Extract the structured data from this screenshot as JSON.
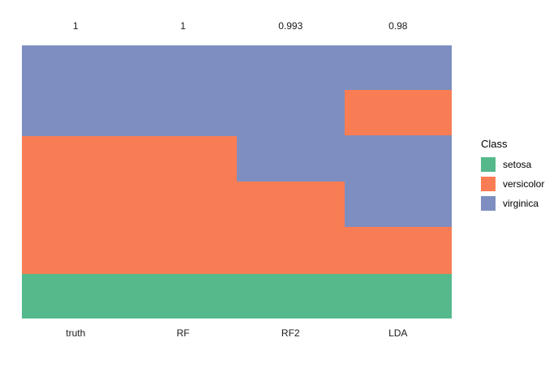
{
  "chart_data": {
    "type": "heatmap",
    "title": "",
    "description": "Stacked class-band chart comparing true iris classes with classifier predictions",
    "columns": [
      "truth",
      "RF",
      "RF2",
      "LDA"
    ],
    "column_top_labels": [
      "1",
      "1",
      "0.993",
      "0.98"
    ],
    "classes": [
      {
        "name": "setosa",
        "color": "#55B98C"
      },
      {
        "name": "versicolor",
        "color": "#F97D54"
      },
      {
        "name": "virginica",
        "color": "#7E8EC0"
      }
    ],
    "column_segments": [
      {
        "column": "truth",
        "top_label": "1",
        "segments": [
          {
            "class": "virginica",
            "fraction": 0.332
          },
          {
            "class": "versicolor",
            "fraction": 0.504
          },
          {
            "class": "setosa",
            "fraction": 0.164
          }
        ]
      },
      {
        "column": "RF",
        "top_label": "1",
        "segments": [
          {
            "class": "virginica",
            "fraction": 0.332
          },
          {
            "class": "versicolor",
            "fraction": 0.504
          },
          {
            "class": "setosa",
            "fraction": 0.164
          }
        ]
      },
      {
        "column": "RF2",
        "top_label": "0.993",
        "segments": [
          {
            "class": "virginica",
            "fraction": 0.498
          },
          {
            "class": "versicolor",
            "fraction": 0.338
          },
          {
            "class": "setosa",
            "fraction": 0.164
          }
        ]
      },
      {
        "column": "LDA",
        "top_label": "0.98",
        "segments": [
          {
            "class": "virginica",
            "fraction": 0.164
          },
          {
            "class": "versicolor",
            "fraction": 0.166
          },
          {
            "class": "virginica",
            "fraction": 0.335
          },
          {
            "class": "versicolor",
            "fraction": 0.171
          },
          {
            "class": "setosa",
            "fraction": 0.164
          }
        ]
      }
    ],
    "legend": {
      "title": "Class",
      "position": "right",
      "entries": [
        "setosa",
        "versicolor",
        "virginica"
      ]
    },
    "axes": {
      "x_labels": [
        "truth",
        "RF",
        "RF2",
        "LDA"
      ],
      "y_axis": "none",
      "grid": false,
      "background": "#ffffff"
    }
  }
}
